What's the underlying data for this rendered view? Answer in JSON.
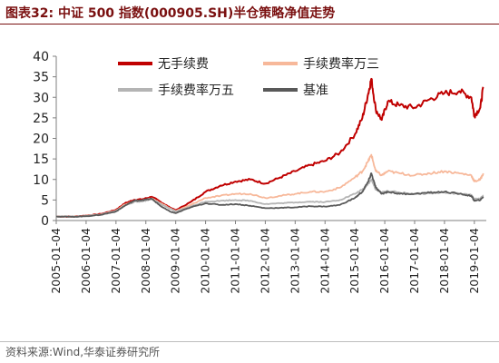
{
  "header": {
    "title": "图表32:    中证 500 指数(000905.SH)半仓策略净值走势"
  },
  "footer": {
    "source": "资料来源:Wind,华泰证券研究所"
  },
  "chart_data": {
    "type": "line",
    "ylim": [
      0,
      40
    ],
    "y_ticks": [
      "0",
      "5",
      "10",
      "15",
      "20",
      "25",
      "30",
      "35",
      "40"
    ],
    "x_ticks": [
      "2005-01-04",
      "2006-01-04",
      "2007-01-04",
      "2008-01-04",
      "2009-01-04",
      "2010-01-04",
      "2011-01-04",
      "2012-01-04",
      "2013-01-04",
      "2014-01-04",
      "2015-01-04",
      "2016-01-04",
      "2017-01-04",
      "2018-01-04",
      "2019-01-04"
    ],
    "x_range": [
      2005.0,
      2019.4
    ],
    "grid": false,
    "legend_position": "top",
    "series": [
      {
        "name": "无手续费",
        "color": "#c00000",
        "x": [
          2005.0,
          2005.5,
          2006.0,
          2006.5,
          2007.0,
          2007.3,
          2007.6,
          2007.9,
          2008.2,
          2008.5,
          2008.8,
          2009.0,
          2009.5,
          2010.0,
          2010.5,
          2011.0,
          2011.5,
          2012.0,
          2012.5,
          2013.0,
          2013.5,
          2014.0,
          2014.5,
          2015.0,
          2015.25,
          2015.45,
          2015.55,
          2015.7,
          2015.9,
          2016.1,
          2016.5,
          2017.0,
          2017.5,
          2018.0,
          2018.5,
          2018.9,
          2019.0,
          2019.2,
          2019.3
        ],
        "values": [
          1.0,
          0.95,
          1.2,
          1.6,
          2.6,
          4.2,
          5.0,
          5.2,
          5.8,
          4.5,
          3.2,
          2.5,
          4.5,
          7.0,
          8.5,
          9.5,
          10.0,
          9.0,
          10.5,
          12.0,
          13.5,
          14.5,
          16.5,
          21.0,
          25.0,
          31.0,
          34.5,
          27.0,
          24.5,
          29.0,
          28.0,
          27.5,
          29.5,
          31.0,
          31.5,
          30.0,
          25.5,
          27.5,
          32.5
        ]
      },
      {
        "name": "手续费率万三",
        "color": "#f7b89a",
        "x": [
          2005.0,
          2005.5,
          2006.0,
          2006.5,
          2007.0,
          2007.3,
          2007.6,
          2007.9,
          2008.2,
          2008.5,
          2008.8,
          2009.0,
          2009.5,
          2010.0,
          2010.5,
          2011.0,
          2011.5,
          2012.0,
          2012.5,
          2013.0,
          2013.5,
          2014.0,
          2014.5,
          2015.0,
          2015.25,
          2015.45,
          2015.55,
          2015.7,
          2015.9,
          2016.1,
          2016.5,
          2017.0,
          2017.5,
          2018.0,
          2018.5,
          2018.9,
          2019.0,
          2019.2,
          2019.3
        ],
        "values": [
          1.0,
          0.95,
          1.15,
          1.5,
          2.4,
          3.9,
          4.7,
          4.9,
          5.4,
          4.2,
          3.0,
          2.3,
          3.8,
          5.5,
          6.0,
          6.5,
          6.5,
          5.5,
          6.0,
          6.5,
          7.0,
          7.0,
          8.0,
          10.5,
          12.0,
          14.5,
          16.0,
          12.0,
          11.0,
          12.0,
          11.5,
          11.0,
          11.5,
          12.0,
          11.5,
          11.0,
          9.5,
          10.0,
          11.5
        ]
      },
      {
        "name": "手续费率万五",
        "color": "#b4b4b4",
        "x": [
          2005.0,
          2005.5,
          2006.0,
          2006.5,
          2007.0,
          2007.3,
          2007.6,
          2007.9,
          2008.2,
          2008.5,
          2008.8,
          2009.0,
          2009.5,
          2010.0,
          2010.5,
          2011.0,
          2011.5,
          2012.0,
          2012.5,
          2013.0,
          2013.5,
          2014.0,
          2014.5,
          2015.0,
          2015.25,
          2015.45,
          2015.55,
          2015.7,
          2015.9,
          2016.1,
          2016.5,
          2017.0,
          2017.5,
          2018.0,
          2018.5,
          2018.9,
          2019.0,
          2019.2,
          2019.3
        ],
        "values": [
          1.0,
          0.95,
          1.1,
          1.45,
          2.3,
          3.7,
          4.5,
          4.7,
          5.2,
          4.0,
          2.9,
          2.2,
          3.4,
          4.6,
          4.8,
          5.0,
          4.8,
          4.0,
          4.2,
          4.4,
          4.6,
          4.5,
          5.0,
          6.5,
          7.5,
          9.0,
          10.0,
          7.5,
          6.8,
          7.2,
          6.8,
          6.5,
          6.6,
          6.8,
          6.5,
          6.2,
          5.2,
          5.4,
          6.0
        ]
      },
      {
        "name": "基准",
        "color": "#595959",
        "x": [
          2005.0,
          2005.5,
          2006.0,
          2006.5,
          2007.0,
          2007.3,
          2007.6,
          2007.9,
          2008.2,
          2008.5,
          2008.8,
          2009.0,
          2009.5,
          2010.0,
          2010.5,
          2011.0,
          2011.5,
          2012.0,
          2012.5,
          2013.0,
          2013.5,
          2014.0,
          2014.5,
          2015.0,
          2015.25,
          2015.45,
          2015.55,
          2015.7,
          2015.9,
          2016.1,
          2016.5,
          2017.0,
          2017.5,
          2018.0,
          2018.5,
          2018.9,
          2019.0,
          2019.2,
          2019.3
        ],
        "values": [
          1.0,
          0.9,
          1.05,
          1.4,
          2.2,
          3.6,
          4.8,
          5.0,
          5.3,
          3.5,
          2.2,
          1.8,
          3.2,
          4.2,
          3.8,
          4.0,
          3.6,
          3.0,
          3.1,
          3.2,
          3.5,
          3.4,
          3.8,
          5.5,
          7.0,
          9.5,
          11.5,
          8.0,
          6.5,
          7.0,
          6.5,
          6.5,
          6.8,
          7.0,
          6.5,
          6.0,
          4.8,
          5.0,
          5.8
        ]
      }
    ]
  }
}
